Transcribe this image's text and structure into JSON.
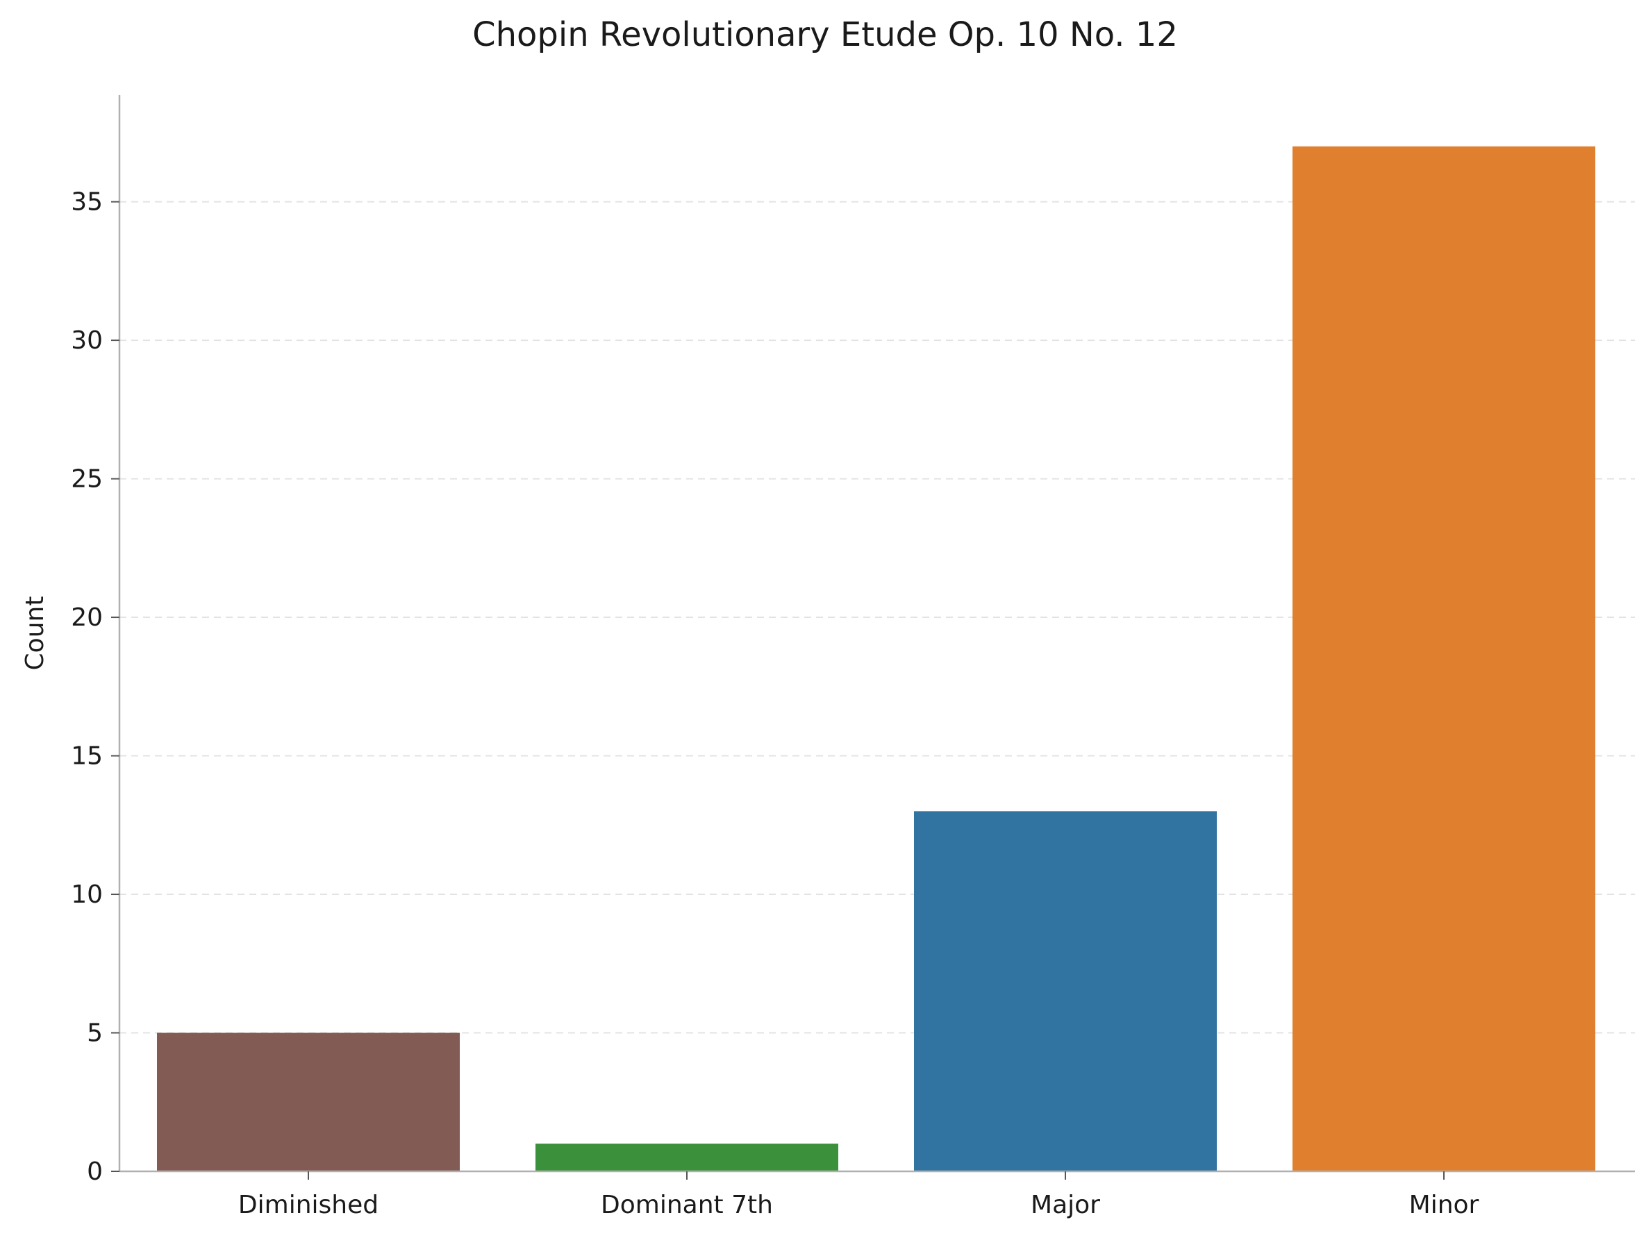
{
  "chart_data": {
    "type": "bar",
    "title": "Chopin Revolutionary Etude Op. 10 No. 12",
    "xlabel": "",
    "ylabel": "Count",
    "categories": [
      "Diminished",
      "Dominant 7th",
      "Major",
      "Minor"
    ],
    "values": [
      5,
      1,
      13,
      37
    ],
    "colors": [
      "#825c54",
      "#3b903c",
      "#3274a1",
      "#e0802e"
    ],
    "ylim": [
      0,
      38.85
    ],
    "yticks": [
      0,
      5,
      10,
      15,
      20,
      25,
      30,
      35
    ],
    "grid": "horizontal dashed",
    "legend": "none"
  }
}
